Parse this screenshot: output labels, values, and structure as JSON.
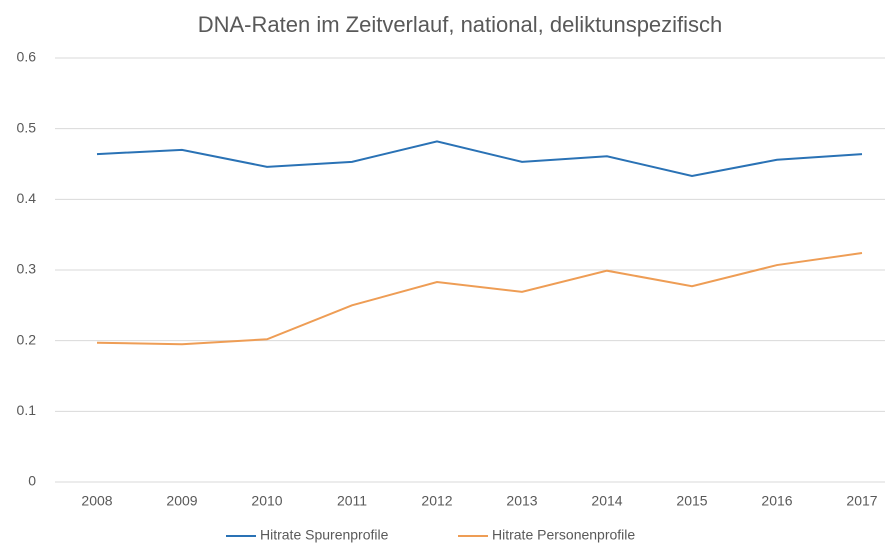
{
  "chart_data": {
    "type": "line",
    "title": "DNA-Raten im Zeitverlauf, national, deliktunspezifisch",
    "categories": [
      "2008",
      "2009",
      "2010",
      "2011",
      "2012",
      "2013",
      "2014",
      "2015",
      "2016",
      "2017"
    ],
    "series": [
      {
        "name": "Hitrate Spurenprofile",
        "color": "#2a72b5",
        "values": [
          0.464,
          0.47,
          0.446,
          0.453,
          0.482,
          0.453,
          0.461,
          0.433,
          0.456,
          0.464
        ]
      },
      {
        "name": "Hitrate Personenprofile",
        "color": "#ee9d55",
        "values": [
          0.197,
          0.195,
          0.202,
          0.25,
          0.283,
          0.269,
          0.299,
          0.277,
          0.307,
          0.324
        ]
      }
    ],
    "ylim": [
      0,
      0.6
    ],
    "yticks": [
      0,
      0.1,
      0.2,
      0.3,
      0.4,
      0.5,
      0.6
    ],
    "grid": true,
    "legend": "bottom"
  }
}
